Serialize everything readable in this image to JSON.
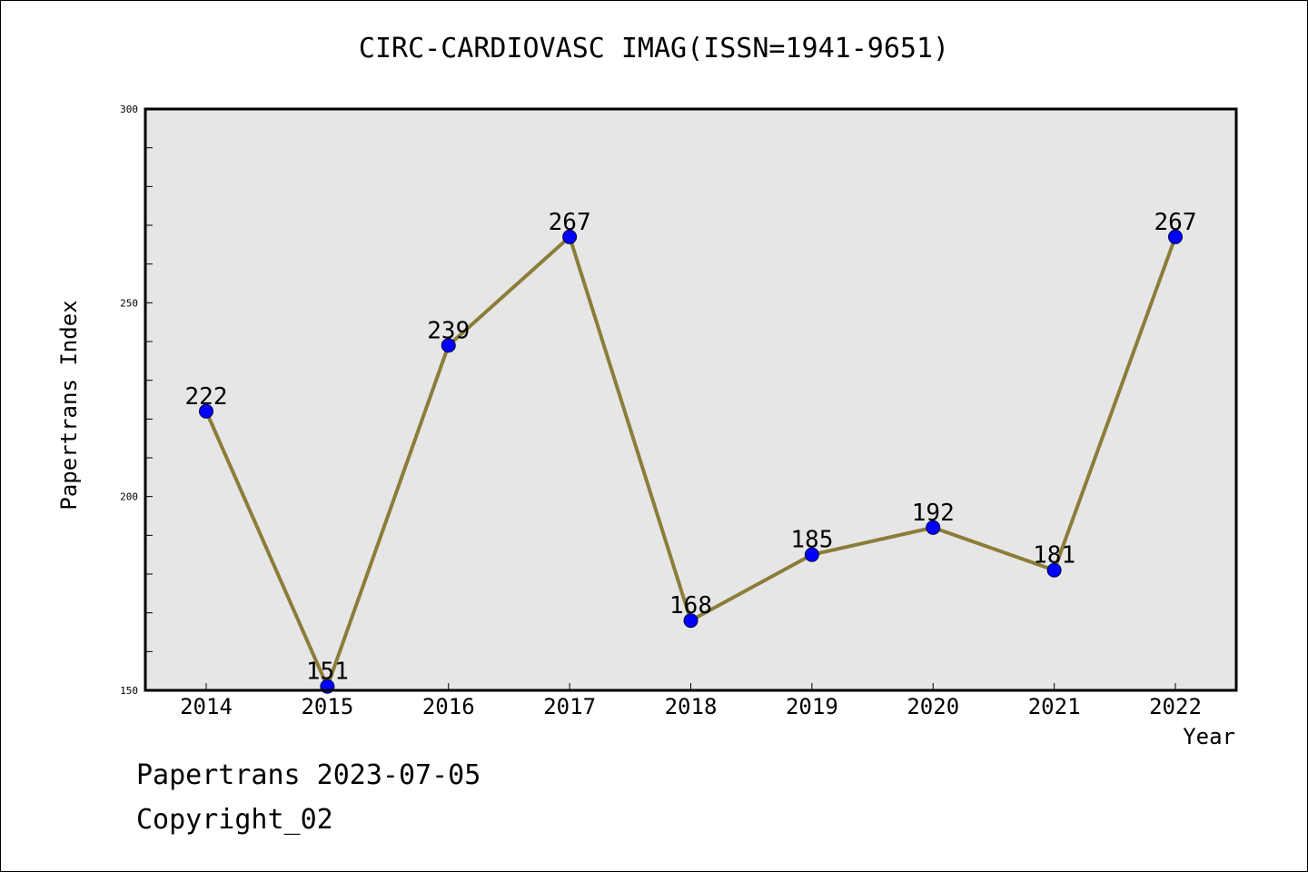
{
  "chart_data": {
    "type": "line",
    "title": "CIRC-CARDIOVASC IMAG(ISSN=1941-9651)",
    "xlabel": "Year",
    "ylabel": "Papertrans Index",
    "categories": [
      "2014",
      "2015",
      "2016",
      "2017",
      "2018",
      "2019",
      "2020",
      "2021",
      "2022"
    ],
    "series": [
      {
        "values": [
          222,
          151,
          239,
          267,
          168,
          185,
          192,
          181,
          267
        ]
      }
    ],
    "ylim": [
      150,
      300
    ],
    "yticks": [
      150,
      200,
      250,
      300
    ],
    "grid": false,
    "data_labels": true,
    "colors": {
      "line": "#8B7D3A",
      "marker": "#0000FF",
      "plot_background": "#E6E6E6"
    }
  },
  "footer": {
    "date_text": "Papertrans 2023-07-05",
    "copyright_text": "Copyright_02"
  }
}
